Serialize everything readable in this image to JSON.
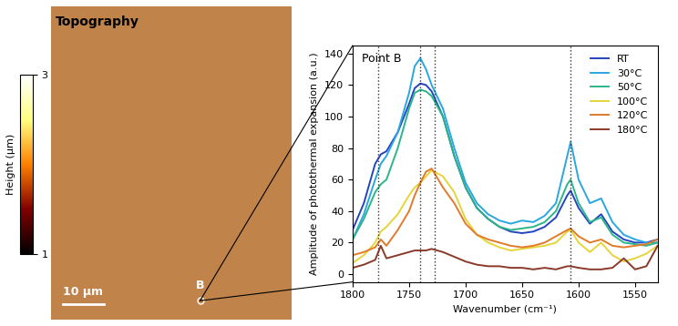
{
  "chart_data": [
    {
      "type": "image",
      "title": "Topography",
      "colorbar": {
        "label": "Height (μm)",
        "range": [
          1,
          3
        ],
        "ticks": [
          1,
          3
        ]
      },
      "annotations": [
        "B",
        "10 μm"
      ]
    },
    {
      "type": "line",
      "annotation": "Point B",
      "x_label": "Wavenumber (cm⁻¹)",
      "y_label": "Amplitude of photothermal expansion (a.u.)",
      "xlim": [
        1800,
        1530
      ],
      "xticks": [
        1800,
        1750,
        1700,
        1650,
        1600,
        1550
      ],
      "ylim": [
        -5,
        145
      ],
      "yticks": [
        0,
        20,
        40,
        60,
        80,
        100,
        120,
        140
      ],
      "vlines": [
        1777,
        1740,
        1727,
        1607
      ],
      "legend": "upper right",
      "x": [
        1800,
        1790,
        1780,
        1775,
        1770,
        1760,
        1750,
        1745,
        1740,
        1735,
        1730,
        1720,
        1710,
        1700,
        1690,
        1680,
        1670,
        1660,
        1650,
        1640,
        1630,
        1620,
        1610,
        1607,
        1600,
        1590,
        1580,
        1570,
        1560,
        1550,
        1540,
        1530
      ],
      "series": [
        {
          "name": "RT",
          "color": "#2444c0",
          "values": [
            28,
            45,
            70,
            76,
            78,
            90,
            108,
            118,
            121,
            120,
            116,
            100,
            75,
            55,
            42,
            35,
            30,
            27,
            26,
            27,
            30,
            36,
            50,
            53,
            42,
            32,
            38,
            27,
            22,
            20,
            20,
            22
          ]
        },
        {
          "name": "30°C",
          "color": "#2aa6e2",
          "values": [
            22,
            38,
            60,
            70,
            75,
            90,
            115,
            132,
            137,
            130,
            120,
            105,
            80,
            58,
            45,
            38,
            34,
            32,
            34,
            33,
            37,
            45,
            75,
            84,
            60,
            45,
            48,
            33,
            25,
            22,
            20,
            20
          ]
        },
        {
          "name": "50°C",
          "color": "#2bb58a",
          "values": [
            22,
            35,
            52,
            57,
            60,
            80,
            105,
            115,
            117,
            116,
            113,
            100,
            75,
            55,
            42,
            35,
            30,
            28,
            29,
            30,
            33,
            40,
            57,
            60,
            45,
            33,
            36,
            25,
            20,
            19,
            18,
            20
          ]
        },
        {
          "name": "100°C",
          "color": "#e6d43a",
          "values": [
            7,
            12,
            20,
            27,
            30,
            38,
            50,
            55,
            58,
            62,
            66,
            62,
            52,
            35,
            25,
            20,
            17,
            15,
            16,
            17,
            18,
            20,
            27,
            28,
            20,
            14,
            20,
            12,
            8,
            10,
            13,
            18
          ]
        },
        {
          "name": "120°C",
          "color": "#e07b2a",
          "values": [
            12,
            14,
            17,
            22,
            18,
            28,
            40,
            50,
            58,
            65,
            67,
            55,
            45,
            32,
            25,
            22,
            20,
            18,
            17,
            18,
            20,
            24,
            28,
            29,
            24,
            20,
            22,
            18,
            17,
            18,
            19,
            22
          ]
        },
        {
          "name": "180°C",
          "color": "#8b3a2a",
          "values": [
            4,
            6,
            9,
            18,
            10,
            12,
            14,
            15,
            15,
            15,
            16,
            14,
            11,
            8,
            6,
            5,
            5,
            4,
            4,
            3,
            4,
            3,
            5,
            5,
            4,
            3,
            3,
            4,
            10,
            3,
            5,
            18
          ]
        }
      ]
    }
  ]
}
